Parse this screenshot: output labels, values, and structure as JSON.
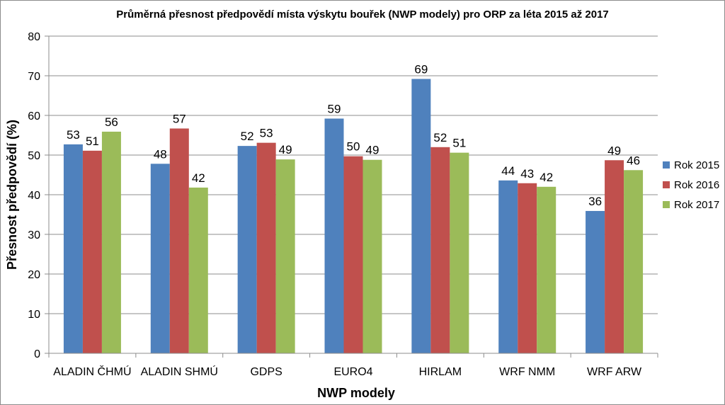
{
  "chart_data": {
    "type": "bar",
    "title": "Průměrná přesnost předpovědí místa výskytu bouřek (NWP modely) pro ORP za léta 2015 až 2017",
    "xlabel": "NWP modely",
    "ylabel": "Přesnost předpovědí (%)",
    "ylim": [
      0,
      80
    ],
    "yticks": [
      0,
      10,
      20,
      30,
      40,
      50,
      60,
      70,
      80
    ],
    "categories": [
      "ALADIN ČHMÚ",
      "ALADIN SHMÚ",
      "GDPS",
      "EURO4",
      "HIRLAM",
      "WRF NMM",
      "WRF ARW"
    ],
    "series": [
      {
        "name": "Rok 2015",
        "color": "#4f81bd",
        "values": [
          52.7,
          47.8,
          52.3,
          59.2,
          69.2,
          43.6,
          35.9
        ],
        "labels": [
          "53",
          "48",
          "52",
          "59",
          "69",
          "44",
          "36"
        ]
      },
      {
        "name": "Rok 2016",
        "color": "#c0504d",
        "values": [
          51.1,
          56.7,
          53.1,
          49.7,
          52.0,
          42.9,
          48.7
        ],
        "labels": [
          "51",
          "57",
          "53",
          "50",
          "52",
          "43",
          "49"
        ]
      },
      {
        "name": "Rok 2017",
        "color": "#9bbb59",
        "values": [
          55.9,
          41.8,
          48.9,
          48.8,
          50.6,
          42.0,
          46.2
        ],
        "labels": [
          "56",
          "42",
          "49",
          "49",
          "51",
          "42",
          "46"
        ]
      }
    ],
    "grid": true,
    "legend_position": "right"
  }
}
